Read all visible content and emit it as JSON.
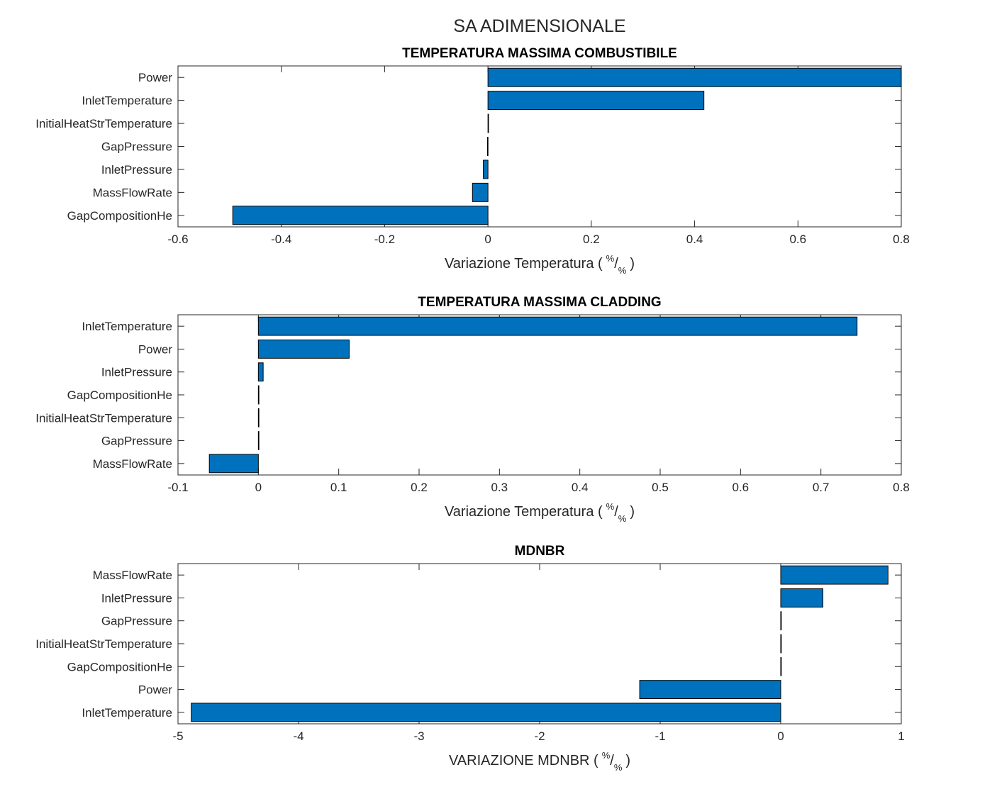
{
  "figure": {
    "suptitle": "SA ADIMENSIONALE",
    "bar_color": "#0072BD"
  },
  "chart_data": [
    {
      "type": "bar",
      "orientation": "horizontal",
      "title": "TEMPERATURA MASSIMA COMBUSTIBILE",
      "categories": [
        "Power",
        "InletTemperature",
        "InitialHeatStrTemperature",
        "GapPressure",
        "InletPressure",
        "MassFlowRate",
        "GapCompositionHe"
      ],
      "values": [
        0.8,
        0.418,
        0.0,
        -0.001,
        -0.009,
        -0.03,
        -0.494
      ],
      "xlim": [
        -0.6,
        0.8
      ],
      "xticks": [
        "-0.6",
        "-0.4",
        "-0.2",
        "0",
        "0.2",
        "0.4",
        "0.6",
        "0.8"
      ],
      "xlabel": {
        "text": "Variazione Temperatura (",
        "num": "%",
        "den": "%",
        "close": ")"
      }
    },
    {
      "type": "bar",
      "orientation": "horizontal",
      "title": "TEMPERATURA MASSIMA CLADDING",
      "categories": [
        "InletTemperature",
        "Power",
        "InletPressure",
        "GapCompositionHe",
        "InitialHeatStrTemperature",
        "GapPressure",
        "MassFlowRate"
      ],
      "values": [
        0.745,
        0.113,
        0.006,
        0.0,
        0.0,
        0.0,
        -0.061
      ],
      "xlim": [
        -0.1,
        0.8
      ],
      "xticks": [
        "-0.1",
        "0",
        "0.1",
        "0.2",
        "0.3",
        "0.4",
        "0.5",
        "0.6",
        "0.7",
        "0.8"
      ],
      "xlabel": {
        "text": "Variazione Temperatura (",
        "num": "%",
        "den": "%",
        "close": ")"
      }
    },
    {
      "type": "bar",
      "orientation": "horizontal",
      "title": "MDNBR",
      "categories": [
        "MassFlowRate",
        "InletPressure",
        "GapPressure",
        "InitialHeatStrTemperature",
        "GapCompositionHe",
        "Power",
        "InletTemperature"
      ],
      "values": [
        0.89,
        0.35,
        0.0,
        0.0,
        0.0,
        -1.17,
        -4.89
      ],
      "xlim": [
        -5,
        1
      ],
      "xticks": [
        "-5",
        "-4",
        "-3",
        "-2",
        "-1",
        "0",
        "1"
      ],
      "xlabel": {
        "text": "VARIAZIONE MDNBR (",
        "num": "%",
        "den": "%",
        "close": ")"
      }
    }
  ]
}
